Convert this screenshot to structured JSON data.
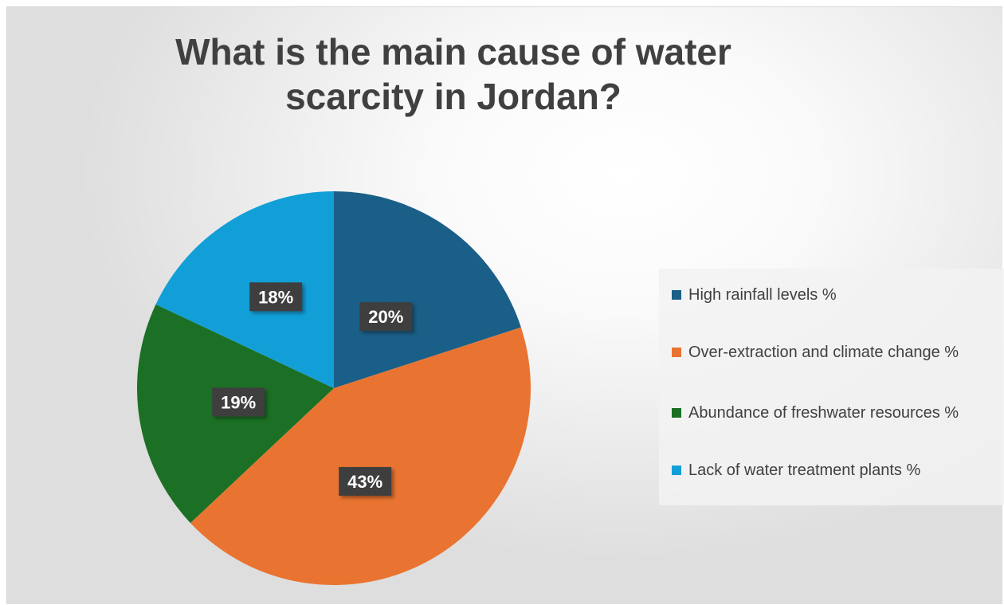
{
  "chart_data": {
    "type": "pie",
    "title": "What is the main cause of water scarcity in Jordan?",
    "slices": [
      {
        "label": "High rainfall levels %",
        "value": 20,
        "display": "20%",
        "color": "#1a5f87"
      },
      {
        "label": "Over-extraction and climate change %",
        "value": 43,
        "display": "43%",
        "color": "#e97431"
      },
      {
        "label": "Abundance of freshwater resources %",
        "value": 19,
        "display": "19%",
        "color": "#1b7025"
      },
      {
        "label": "Lack of water treatment plants %",
        "value": 18,
        "display": "18%",
        "color": "#129fd8"
      }
    ],
    "legend_position": "right",
    "label_style": "dark boxes with white bold text"
  }
}
